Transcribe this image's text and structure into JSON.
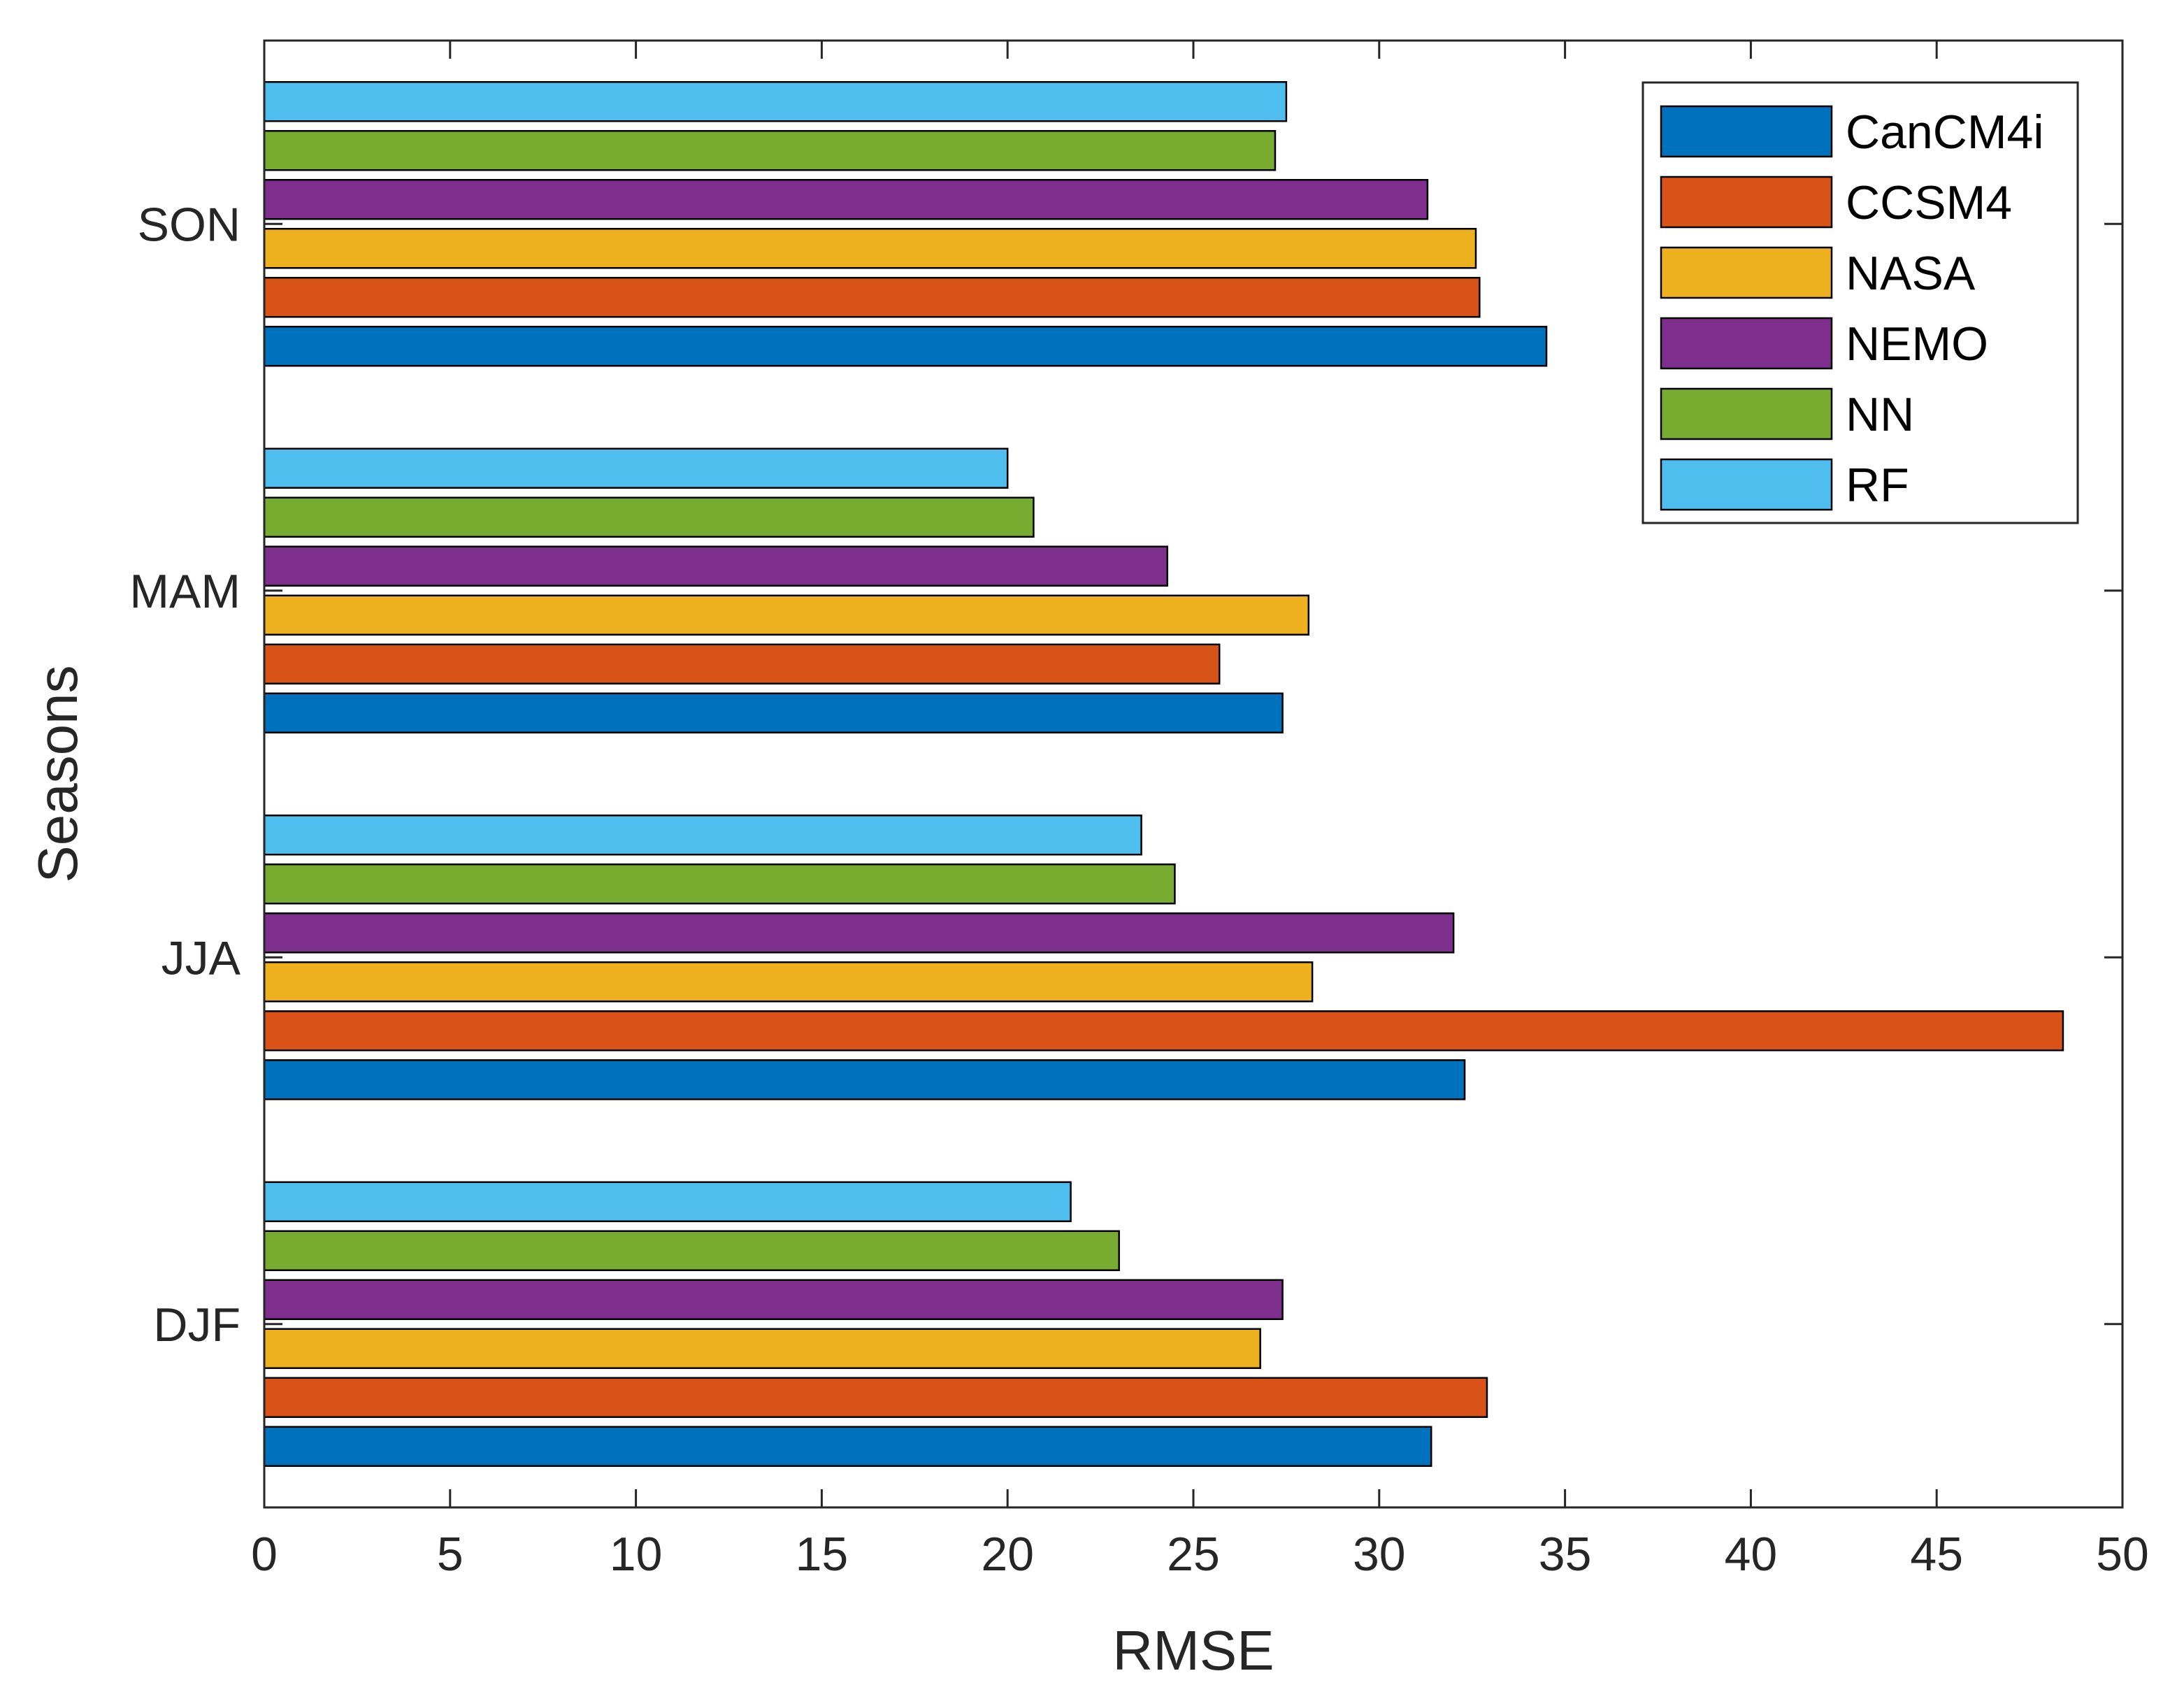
{
  "chart_data": {
    "type": "bar",
    "orientation": "horizontal",
    "xlabel": "RMSE",
    "ylabel": "Seasons",
    "xlim": [
      0,
      50
    ],
    "xticks": [
      0,
      5,
      10,
      15,
      20,
      25,
      30,
      35,
      40,
      45,
      50
    ],
    "categories": [
      "DJF",
      "JJA",
      "MAM",
      "SON"
    ],
    "grid": false,
    "legend_position": "top-right",
    "series": [
      {
        "name": "CanCM4i",
        "color": "#0072BD",
        "values": [
          31.4,
          32.3,
          27.4,
          34.5
        ]
      },
      {
        "name": "CCSM4",
        "color": "#D95319",
        "values": [
          32.9,
          48.4,
          25.7,
          32.7
        ]
      },
      {
        "name": "NASA",
        "color": "#EDB120",
        "values": [
          26.8,
          28.2,
          28.1,
          32.6
        ]
      },
      {
        "name": "NEMO",
        "color": "#7E2F8E",
        "values": [
          27.4,
          32.0,
          24.3,
          31.3
        ]
      },
      {
        "name": "NN",
        "color": "#77AC30",
        "values": [
          23.0,
          24.5,
          20.7,
          27.2
        ]
      },
      {
        "name": "RF",
        "color": "#4DBEEE",
        "values": [
          21.7,
          23.6,
          20.0,
          27.5
        ]
      }
    ]
  }
}
